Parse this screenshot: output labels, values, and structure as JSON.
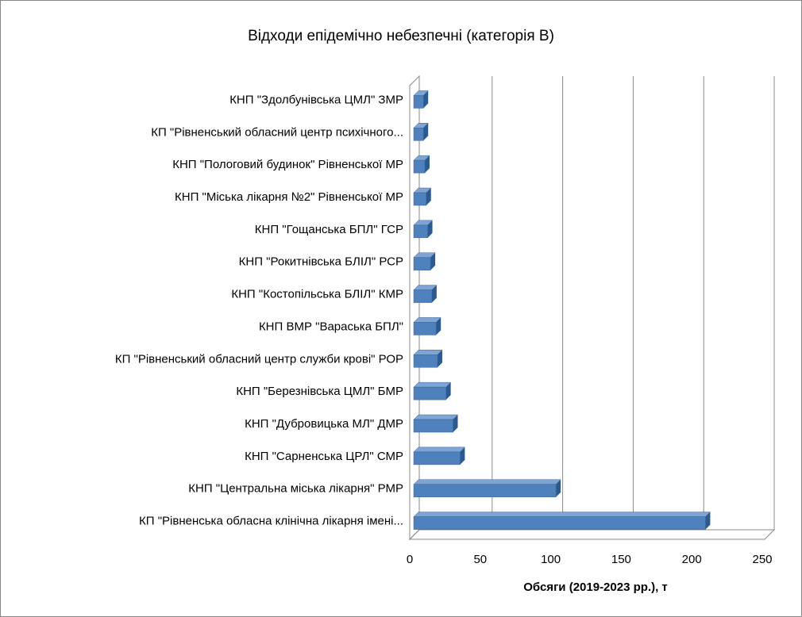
{
  "chart_data": {
    "type": "bar3d",
    "orientation": "horizontal",
    "title": "Відходи епідемічно небезпечні (категорія В)",
    "x_label": "Обсяги (2019-2023 рр.), т",
    "categories": [
      "КНП \"Здолбунівська ЦМЛ\" ЗМР",
      "КП \"Рівненський обласний центр психічного...",
      "КНП \"Пологовий будинок\" Рівненської МР",
      "КНП \"Міська лікарня №2\" Рівненської МР",
      "КНП \"Гощанська БПЛ\" ГСР",
      "КНП \"Рокитнівська БЛІЛ\" РСР",
      "КНП \"Костопільська БЛІЛ\" КМР",
      "КНП ВМР \"Вараська БПЛ\"",
      "КП \"Рівненський обласний центр служби крові\" РОР",
      "КНП \"Березнівська ЦМЛ\" БМР",
      "КНП \"Дубровицька МЛ\" ДМР",
      "КНП \"Сарненська ЦРЛ\" СМР",
      "КНП \"Центральна міська лікарня\" РМР",
      "КП \"Рівненська обласна клінічна лікарня імені..."
    ],
    "values": [
      8,
      8,
      9,
      10,
      11,
      13,
      14,
      17,
      18,
      24,
      29,
      34,
      102,
      208
    ],
    "color": "#4f81bd",
    "xlim": [
      0,
      250
    ],
    "xticks": [
      0,
      50,
      100,
      150,
      200,
      250
    ],
    "grid": true
  }
}
